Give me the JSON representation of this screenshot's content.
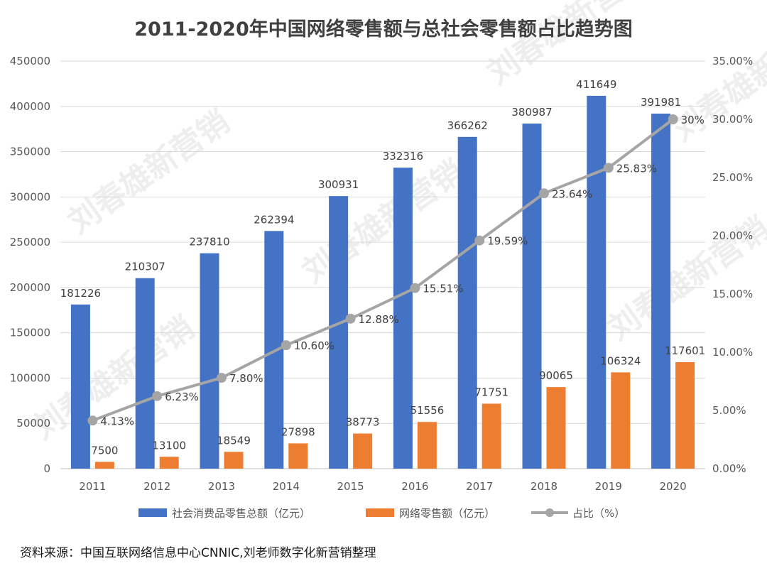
{
  "chart_data": {
    "type": "bar+line",
    "title": "2011-2020年中国网络零售额与总社会零售额占比趋势图",
    "categories": [
      "2011",
      "2012",
      "2013",
      "2014",
      "2015",
      "2016",
      "2017",
      "2018",
      "2019",
      "2020"
    ],
    "series": [
      {
        "name": "社会消费品零售总额（亿元）",
        "type": "bar",
        "axis": "left",
        "color": "#4472c4",
        "values": [
          181226,
          210307,
          237810,
          262394,
          300931,
          332316,
          366262,
          380987,
          411649,
          391981
        ]
      },
      {
        "name": "网络零售额（亿元）",
        "type": "bar",
        "axis": "left",
        "color": "#ed7d31",
        "values": [
          7500,
          13100,
          18549,
          27898,
          38773,
          51556,
          71751,
          90065,
          106324,
          117601
        ]
      },
      {
        "name": "占比（%）",
        "type": "line",
        "axis": "right",
        "color": "#a5a5a5",
        "values": [
          4.13,
          6.23,
          7.8,
          10.6,
          12.88,
          15.51,
          19.59,
          23.64,
          25.83,
          30
        ],
        "labels": [
          "4.13%",
          "6.23%",
          "7.80%",
          "10.60%",
          "12.88%",
          "15.51%",
          "19.59%",
          "23.64%",
          "25.83%",
          "30%"
        ]
      }
    ],
    "y_left": {
      "min": 0,
      "max": 450000,
      "step": 50000,
      "ticks": [
        "0",
        "50000",
        "100000",
        "150000",
        "200000",
        "250000",
        "300000",
        "350000",
        "400000",
        "450000"
      ]
    },
    "y_right": {
      "min": 0,
      "max": 35,
      "step": 5,
      "ticks": [
        "0.00%",
        "5.00%",
        "10.00%",
        "15.00%",
        "20.00%",
        "25.00%",
        "30.00%",
        "35.00%"
      ]
    },
    "legend_position": "bottom",
    "grid": true
  },
  "source_note": "资料来源：中国互联网络信息中心CNNIC,刘老师数字化新营销整理",
  "watermark": "刘春雄新营销"
}
